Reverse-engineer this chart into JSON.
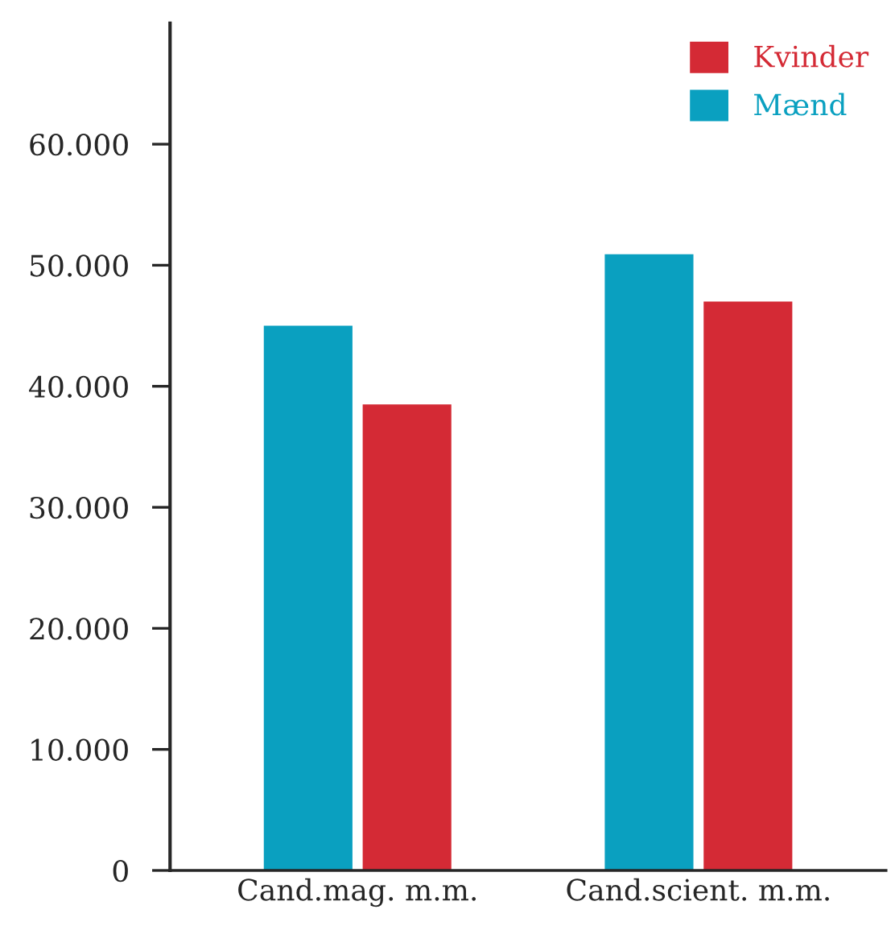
{
  "chart_data": {
    "type": "bar",
    "categories": [
      "Cand.mag. m.m.",
      "Cand.scient. m.m."
    ],
    "series": [
      {
        "name": "Mænd",
        "color": "#0aa0c0",
        "values": [
          45000,
          50900
        ]
      },
      {
        "name": "Kvinder",
        "color": "#d42a35",
        "values": [
          38500,
          47000
        ]
      }
    ],
    "ylim": [
      0,
      70000
    ],
    "yticks": [
      0,
      {
        "value": 10000,
        "label": "10.000"
      },
      {
        "value": 20000,
        "label": "20.000"
      },
      {
        "value": 30000,
        "label": "30.000"
      },
      {
        "value": 40000,
        "label": "40.000"
      },
      {
        "value": 50000,
        "label": "50.000"
      },
      {
        "value": 60000,
        "label": "60.000"
      }
    ],
    "grid": false,
    "legend": "top right"
  }
}
